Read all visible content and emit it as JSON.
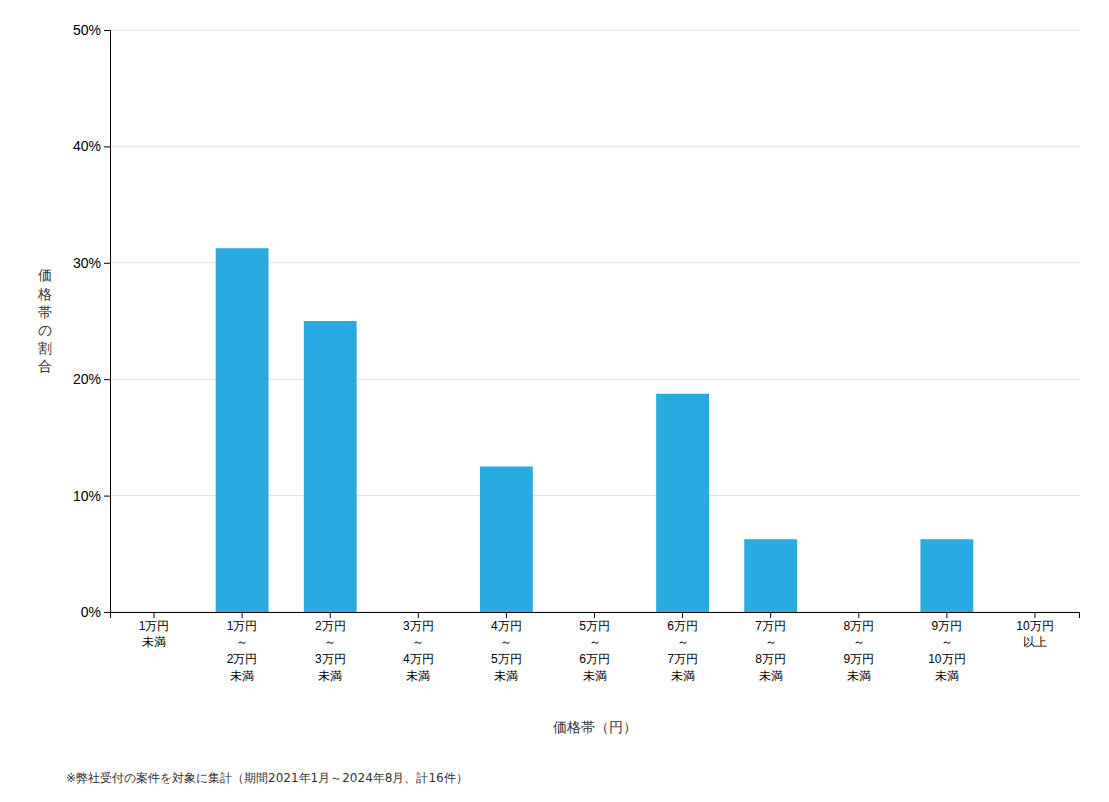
{
  "chart_data": {
    "type": "bar",
    "categories": [
      "1万円\n未満",
      "1万円\n～\n2万円\n未満",
      "2万円\n～\n3万円\n未満",
      "3万円\n～\n4万円\n未満",
      "4万円\n～\n5万円\n未満",
      "5万円\n～\n6万円\n未満",
      "6万円\n～\n7万円\n未満",
      "7万円\n～\n8万円\n未満",
      "8万円\n～\n9万円\n未満",
      "9万円\n～\n10万円\n未満",
      "10万円\n以上"
    ],
    "values": [
      0,
      31.25,
      25.0,
      0,
      12.5,
      0,
      18.75,
      6.25,
      0,
      6.25,
      0
    ],
    "color": "#29ABE2",
    "xlabel": "価格帯（円）",
    "ylabel": "価\n格\n帯\nの\n割\n合",
    "annotations": [
      "※弊社受付の案件を対象に集計（期間2021年1月～2024年8月、計16件）"
    ],
    "ylim": [
      0,
      50
    ],
    "yticks": [
      {
        "value": 0,
        "label": "0%"
      },
      {
        "value": 10,
        "label": "10%"
      },
      {
        "value": 20,
        "label": "20%"
      },
      {
        "value": 30,
        "label": "30%"
      },
      {
        "value": 40,
        "label": "40%"
      },
      {
        "value": 50,
        "label": "50%"
      }
    ],
    "grid": true
  }
}
